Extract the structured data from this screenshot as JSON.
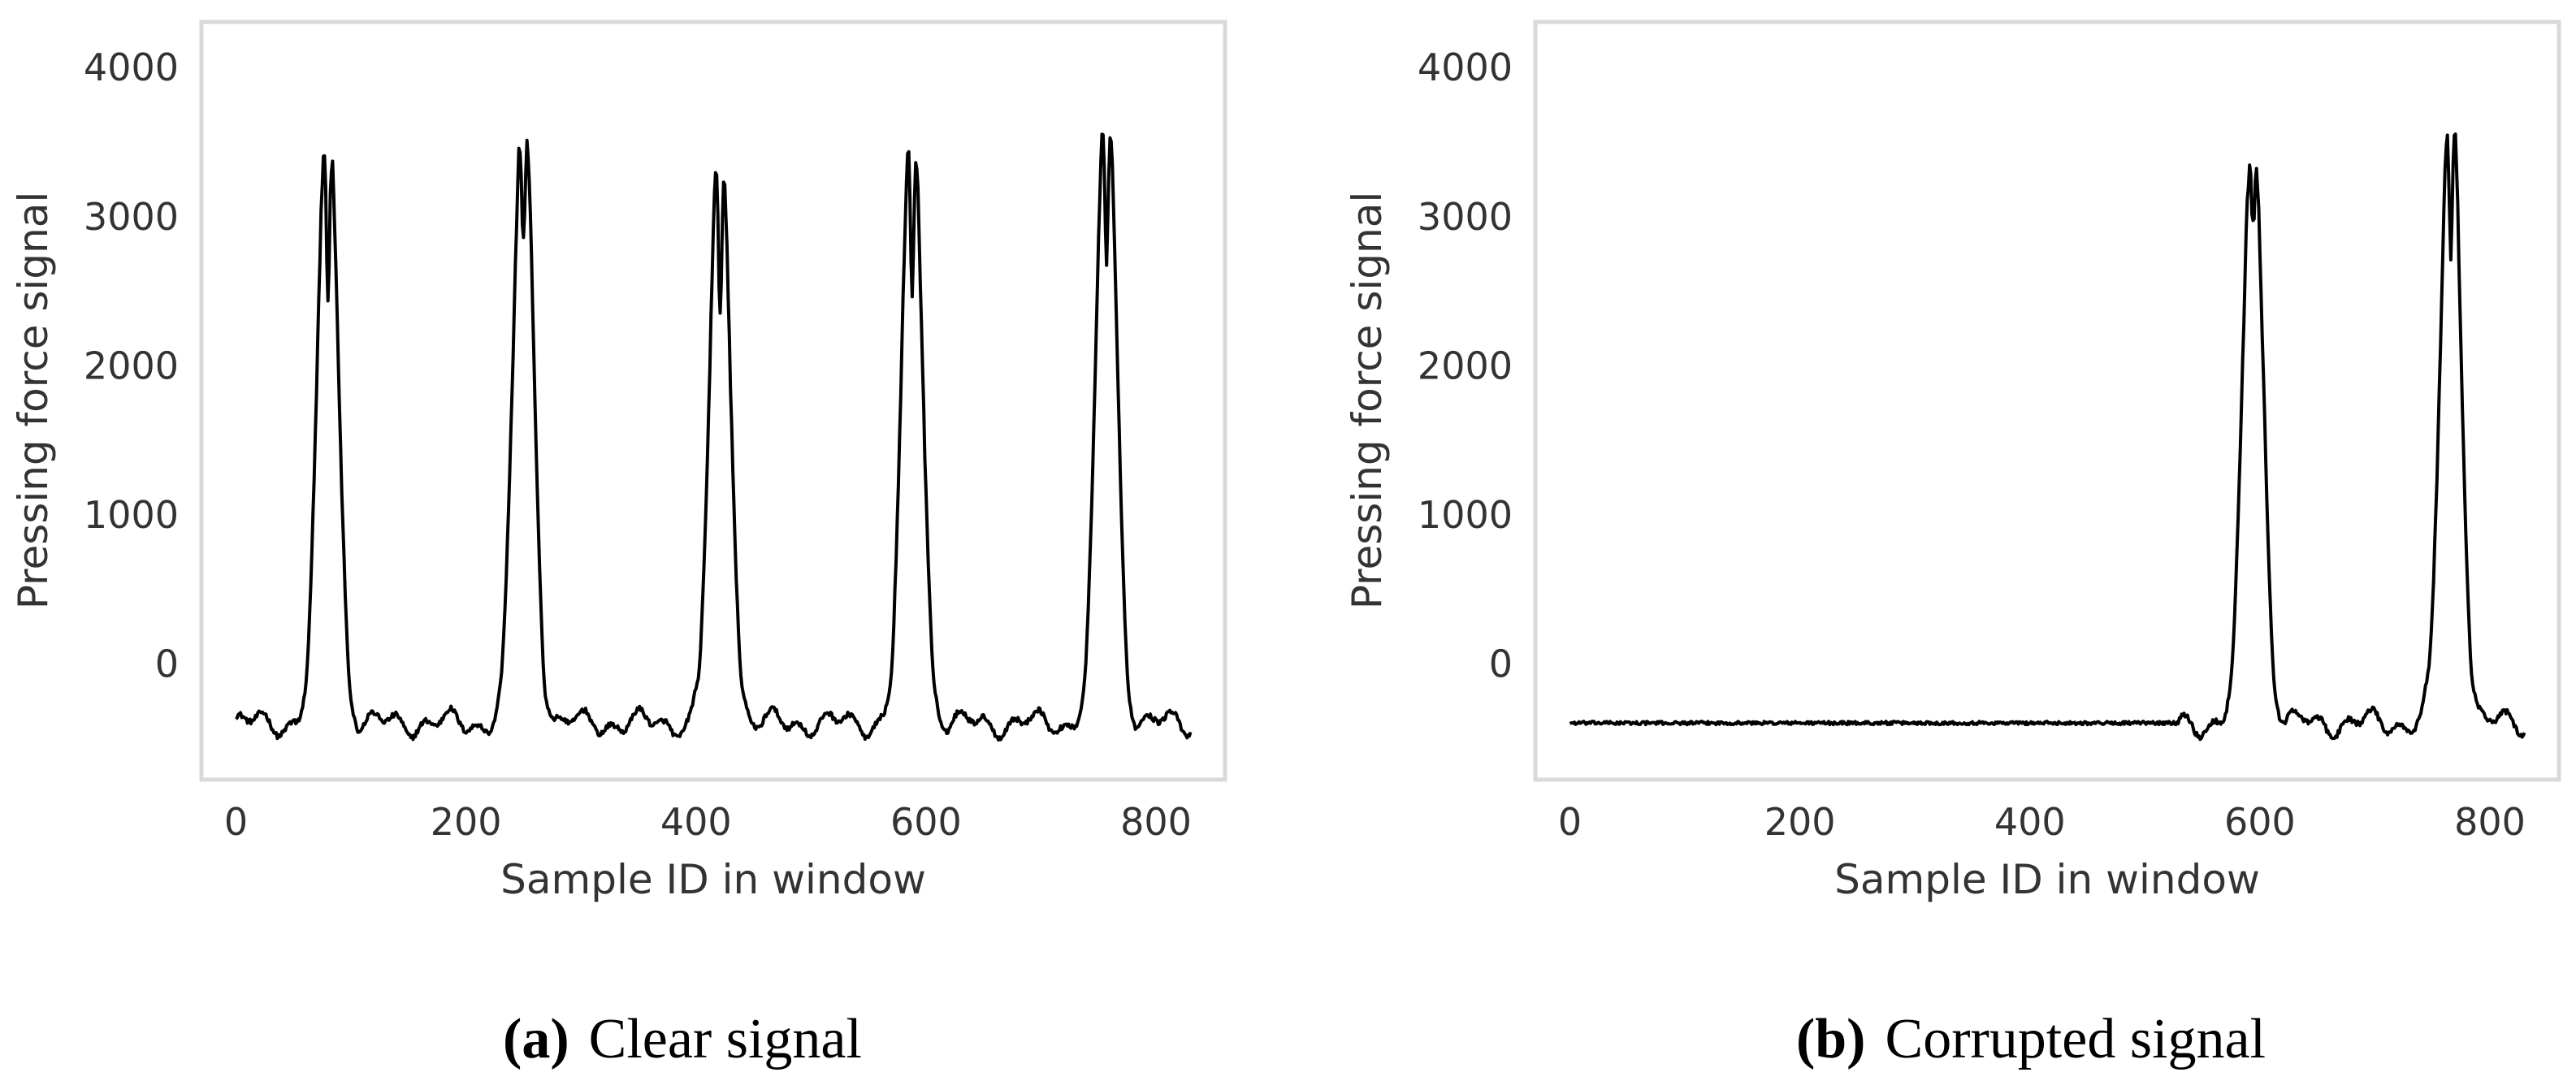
{
  "chart_data": [
    {
      "type": "line",
      "panel_label": "(a)",
      "caption": "Clear signal",
      "xlabel": "Sample ID in window",
      "ylabel": "Pressing force signal",
      "xlim": [
        -30,
        860
      ],
      "ylim": [
        -780,
        4300
      ],
      "xticks": [
        0,
        200,
        400,
        600,
        800
      ],
      "yticks": [
        0,
        1000,
        2000,
        3000,
        4000
      ],
      "xtick_labels": [
        "0",
        "200",
        "400",
        "600",
        "800"
      ],
      "ytick_labels": [
        "0",
        "1000",
        "2000",
        "3000",
        "4000"
      ],
      "grid": false,
      "line_color": "#000000",
      "series": [
        {
          "peaks": [
            {
              "center": 80,
              "amp": 3850,
              "dip": 2400,
              "split": 7
            },
            {
              "center": 250,
              "amp": 3920,
              "dip": 2750,
              "split": 6
            },
            {
              "center": 421,
              "amp": 3720,
              "dip": 2150,
              "split": 5
            },
            {
              "center": 588,
              "amp": 3850,
              "dip": 2350,
              "split": 8
            },
            {
              "center": 757,
              "amp": 4050,
              "dip": 2650,
              "split": 8
            }
          ],
          "baseline": -400,
          "x_end": 830
        }
      ]
    },
    {
      "type": "line",
      "panel_label": "(b)",
      "caption": "Corrupted signal",
      "xlabel": "Sample ID in window",
      "ylabel": "Pressing force signal",
      "xlim": [
        -30,
        860
      ],
      "ylim": [
        -780,
        4300
      ],
      "xticks": [
        0,
        200,
        400,
        600,
        800
      ],
      "yticks": [
        0,
        1000,
        2000,
        3000,
        4000
      ],
      "xtick_labels": [
        "0",
        "200",
        "400",
        "600",
        "800"
      ],
      "ytick_labels": [
        "0",
        "1000",
        "2000",
        "3000",
        "4000"
      ],
      "grid": false,
      "line_color": "#000000",
      "series": [
        {
          "flat_until": 530,
          "peaks": [
            {
              "center": 594,
              "amp": 3700,
              "dip": 2950,
              "split": 6
            },
            {
              "center": 766,
              "amp": 4050,
              "dip": 2650,
              "split": 8
            }
          ],
          "baseline": -400,
          "x_end": 830
        }
      ]
    }
  ]
}
